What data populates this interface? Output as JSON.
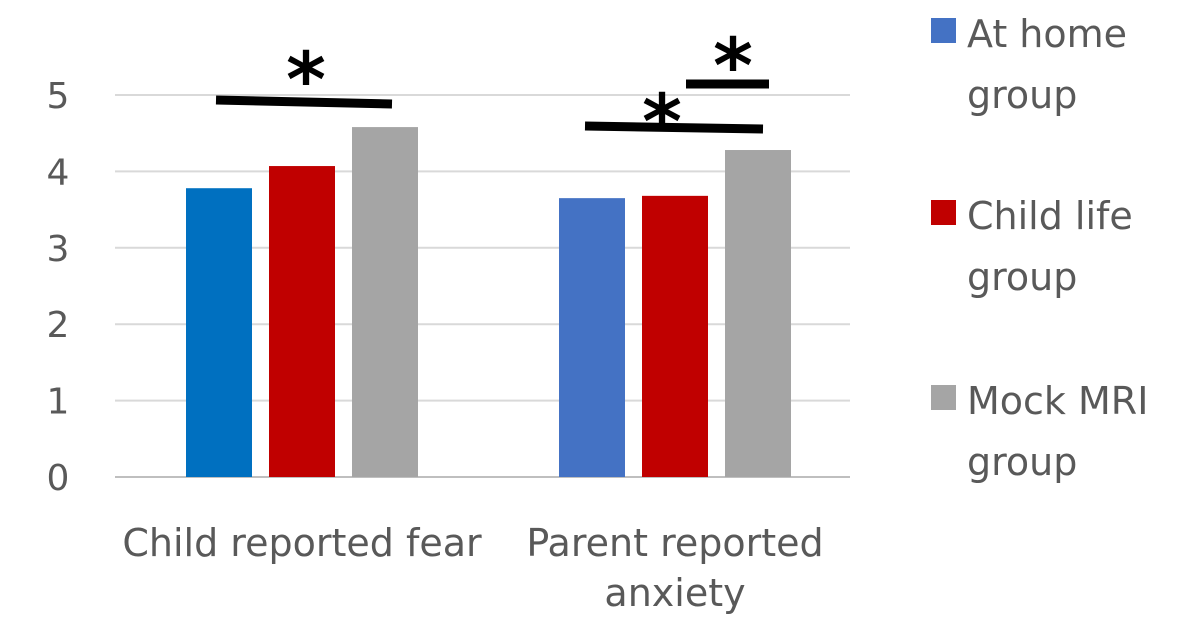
{
  "chart_data": {
    "type": "bar",
    "title": "",
    "xlabel": "",
    "ylabel": "",
    "ylim": [
      0,
      5
    ],
    "yticks": [
      "0",
      "1",
      "2",
      "3",
      "4",
      "5"
    ],
    "grid": true,
    "legend_position": "right",
    "categories": [
      [
        "Child reported fear"
      ],
      [
        "Parent reported",
        "anxiety"
      ]
    ],
    "series": [
      {
        "name": [
          "At home",
          "group"
        ],
        "values": [
          3.78,
          3.65
        ],
        "colors": [
          "#0070C0",
          "#4472C4"
        ]
      },
      {
        "name": [
          "Child life",
          "group"
        ],
        "values": [
          4.07,
          3.68
        ],
        "colors": [
          "#C00000",
          "#C00000"
        ]
      },
      {
        "name": [
          "Mock MRI",
          "group"
        ],
        "values": [
          4.58,
          4.28
        ],
        "colors": [
          "#A5A5A5",
          "#A5A5A5"
        ]
      }
    ],
    "legend_colors": [
      "#4472C4",
      "#C00000",
      "#A5A5A5"
    ],
    "significance_marks": [
      {
        "label": "*",
        "category": 0,
        "from_series": 0,
        "to_series": 2
      },
      {
        "label": "*",
        "category": 1,
        "from_series": 0,
        "to_series": 2
      },
      {
        "label": "*",
        "category": 1,
        "from_series": 1,
        "to_series": 2
      }
    ]
  }
}
